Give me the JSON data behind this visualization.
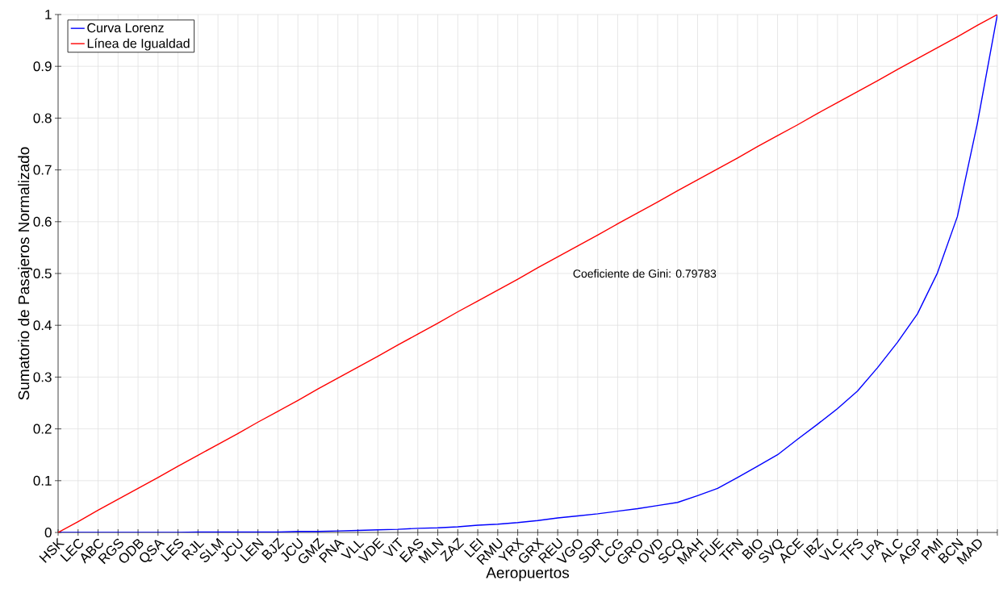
{
  "chart_data": {
    "type": "line",
    "xlabel": "Aeropuertos",
    "ylabel": "Sumatorio de Pasajeros Normalizado",
    "categories": [
      "HSK",
      "LEC",
      "ABC",
      "RGS",
      "ODB",
      "QSA",
      "LES",
      "RJL",
      "SLM",
      "JCU",
      "LEN",
      "BJZ",
      "JCU",
      "GMZ",
      "PNA",
      "VLL",
      "VDE",
      "VIT",
      "EAS",
      "MLN",
      "ZAZ",
      "LEI",
      "RMU",
      "YRX",
      "GRX",
      "REU",
      "VGO",
      "SDR",
      "LCG",
      "GRO",
      "OVD",
      "SCQ",
      "MAH",
      "FUE",
      "TFN",
      "BIO",
      "SVQ",
      "ACE",
      "IBZ",
      "VLC",
      "TFS",
      "LPA",
      "ALC",
      "AGP",
      "PMI",
      "BCN",
      "MAD",
      null
    ],
    "series": [
      {
        "name": "Curva Lorenz",
        "color": "#0000ff",
        "values": [
          0,
          0,
          0,
          0,
          0,
          0,
          0,
          0.001,
          0.001,
          0.001,
          0.001,
          0.001,
          0.002,
          0.002,
          0.003,
          0.004,
          0.005,
          0.006,
          0.008,
          0.009,
          0.011,
          0.014,
          0.016,
          0.019,
          0.023,
          0.028,
          0.032,
          0.036,
          0.041,
          0.046,
          0.052,
          0.058,
          0.071,
          0.085,
          0.106,
          0.128,
          0.15,
          0.18,
          0.209,
          0.239,
          0.273,
          0.318,
          0.367,
          0.422,
          0.501,
          0.61,
          0.79,
          1.0
        ]
      },
      {
        "name": "Línea de Igualdad",
        "color": "#ff0000",
        "values": [
          0,
          0.021,
          0.043,
          0.064,
          0.085,
          0.106,
          0.128,
          0.149,
          0.17,
          0.191,
          0.213,
          0.234,
          0.255,
          0.277,
          0.298,
          0.319,
          0.34,
          0.362,
          0.383,
          0.404,
          0.426,
          0.447,
          0.468,
          0.489,
          0.511,
          0.532,
          0.553,
          0.574,
          0.596,
          0.617,
          0.638,
          0.66,
          0.681,
          0.702,
          0.723,
          0.745,
          0.766,
          0.787,
          0.809,
          0.83,
          0.851,
          0.872,
          0.894,
          0.915,
          0.936,
          0.957,
          0.979,
          1.0
        ]
      }
    ],
    "ylim": [
      0,
      1
    ],
    "yticks": [
      0,
      0.1,
      0.2,
      0.3,
      0.4,
      0.5,
      0.6,
      0.7,
      0.8,
      0.9,
      1
    ],
    "grid": true,
    "legend": "top left",
    "annotations": [
      "Coeficiente de Gini: 0.79783"
    ]
  }
}
